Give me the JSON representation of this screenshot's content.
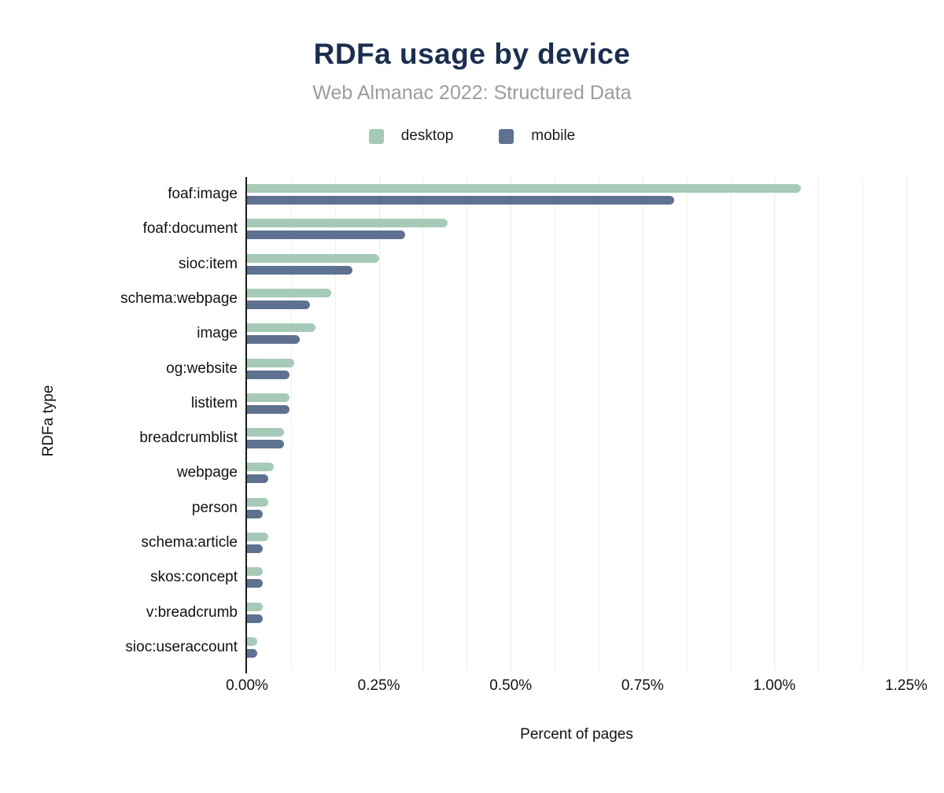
{
  "header": {
    "title": "RDFa usage by device",
    "subtitle": "Web Almanac 2022: Structured Data"
  },
  "legend": {
    "items": [
      {
        "label": "desktop",
        "color": "#a6cab7"
      },
      {
        "label": "mobile",
        "color": "#5e7191"
      }
    ]
  },
  "colors": {
    "desktop_bar": "#a6cab7",
    "mobile_bar": "#5e7191",
    "title_text": "#1c2e4f",
    "subtitle_text": "#9c9c9c",
    "axis_line": "#1a1a1a",
    "gridline": "#f0f0f0"
  },
  "chart_data": {
    "type": "bar",
    "orientation": "horizontal",
    "title": "RDFa usage by device",
    "subtitle": "Web Almanac 2022: Structured Data",
    "xlabel": "Percent of pages",
    "ylabel": "RDFa type",
    "xlim": [
      0,
      1.25
    ],
    "x_tick_labels": [
      "0.00%",
      "0.25%",
      "0.50%",
      "0.75%",
      "1.00%",
      "1.25%"
    ],
    "x_tick_values": [
      0,
      0.25,
      0.5,
      0.75,
      1.0,
      1.25
    ],
    "grid": "vertical minor gridlines on, 3 per major interval",
    "legend_position": "top",
    "categories": [
      "foaf:image",
      "foaf:document",
      "sioc:item",
      "schema:webpage",
      "image",
      "og:website",
      "listitem",
      "breadcrumblist",
      "webpage",
      "person",
      "schema:article",
      "skos:concept",
      "v:breadcrumb",
      "sioc:useraccount"
    ],
    "series": [
      {
        "name": "desktop",
        "color": "#a6cab7",
        "values": [
          1.05,
          0.38,
          0.25,
          0.16,
          0.13,
          0.09,
          0.08,
          0.07,
          0.05,
          0.04,
          0.04,
          0.03,
          0.03,
          0.02
        ]
      },
      {
        "name": "mobile",
        "color": "#5e7191",
        "values": [
          0.81,
          0.3,
          0.2,
          0.12,
          0.1,
          0.08,
          0.08,
          0.07,
          0.04,
          0.03,
          0.03,
          0.03,
          0.03,
          0.02
        ]
      }
    ],
    "value_unit": "%"
  }
}
